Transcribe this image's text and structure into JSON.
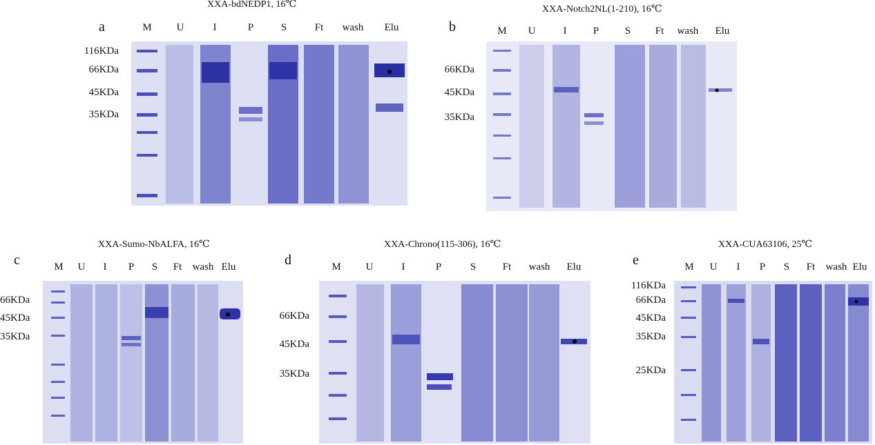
{
  "panels": [
    {
      "letter": "a",
      "title": "XXA-bdNEDP1, 16℃",
      "lanes": [
        "M",
        "U",
        "I",
        "P",
        "S",
        "Ft",
        "wash",
        "Elu"
      ],
      "markers": [
        "116KDa",
        "66KDa",
        "45KDa",
        "35KDa"
      ]
    },
    {
      "letter": "b",
      "title": "XXA-Notch2NL(1-210), 16℃",
      "lanes": [
        "M",
        "U",
        "I",
        "P",
        "S",
        "Ft",
        "wash",
        "Elu"
      ],
      "markers": [
        "66KDa",
        "45KDa",
        "35KDa"
      ]
    },
    {
      "letter": "c",
      "title": "XXA-Sumo-NbALFA, 16℃",
      "lanes": [
        "M",
        "U",
        "I",
        "P",
        "S",
        "Ft",
        "wash",
        "Elu"
      ],
      "markers": [
        "66KDa",
        "45KDa",
        "35KDa"
      ]
    },
    {
      "letter": "d",
      "title": "XXA-Chrono(115-306), 16℃",
      "lanes": [
        "M",
        "U",
        "I",
        "P",
        "S",
        "Ft",
        "wash",
        "Elu"
      ],
      "markers": [
        "66KDa",
        "45KDa",
        "35KDa"
      ]
    },
    {
      "letter": "e",
      "title": "XXA-CUA63106, 25℃",
      "lanes": [
        "M",
        "U",
        "I",
        "P",
        "S",
        "Ft",
        "wash",
        "Elu"
      ],
      "markers": [
        "116KDa",
        "66KDa",
        "45KDa",
        "35KDa",
        "25KDa"
      ]
    }
  ],
  "colors": {
    "gel": "#dfe0f3",
    "band": "#3a3fb0",
    "dot": "#000000"
  }
}
